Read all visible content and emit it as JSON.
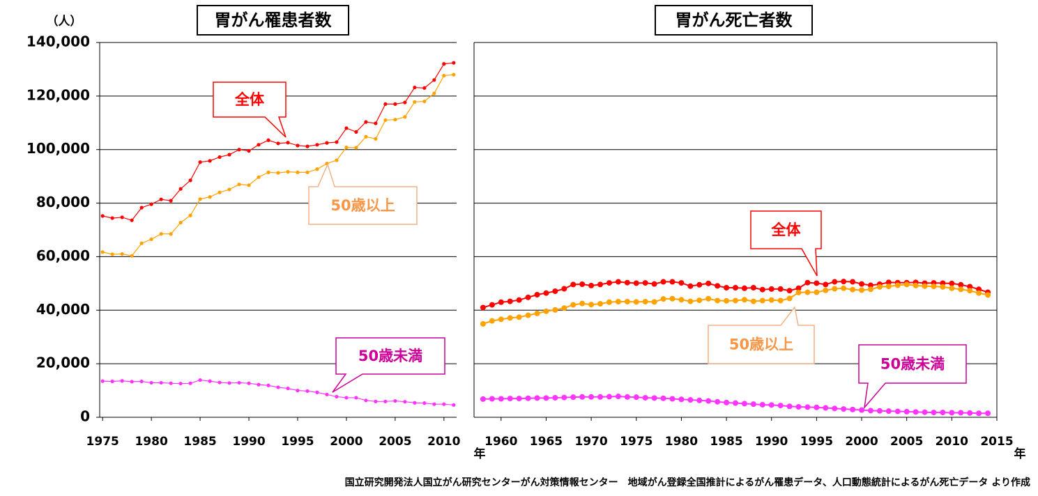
{
  "chart_data": [
    {
      "type": "line",
      "title": "胃がん罹患者数",
      "y_label": "（人）",
      "x_label": "年",
      "xlim": [
        1974.7,
        2011.3
      ],
      "xticks": [
        1975,
        1980,
        1985,
        1990,
        1995,
        2000,
        2005,
        2010
      ],
      "ylim": [
        0,
        140000
      ],
      "yticks": [
        0,
        {
          "value": 20000,
          "label": "20,000"
        },
        {
          "value": 40000,
          "label": "40,000"
        },
        {
          "value": 60000,
          "label": "60,000"
        },
        {
          "value": 80000,
          "label": "80,000"
        },
        {
          "value": 100000,
          "label": "100,000"
        },
        {
          "value": 120000,
          "label": "120,000"
        },
        {
          "value": 140000,
          "label": "140,000"
        }
      ],
      "grid": true,
      "x": [
        1975,
        1976,
        1977,
        1978,
        1979,
        1980,
        1981,
        1982,
        1983,
        1984,
        1985,
        1986,
        1987,
        1988,
        1989,
        1990,
        1991,
        1992,
        1993,
        1994,
        1995,
        1996,
        1997,
        1998,
        1999,
        2000,
        2001,
        2002,
        2003,
        2004,
        2005,
        2006,
        2007,
        2008,
        2009,
        2010,
        2011
      ],
      "series": [
        {
          "name": "全体",
          "color": "#ff0000",
          "values": [
            75200,
            74400,
            74700,
            73600,
            78300,
            79600,
            81400,
            80900,
            85300,
            88500,
            95300,
            95800,
            97200,
            98100,
            100000,
            99500,
            101800,
            103500,
            102300,
            102600,
            101500,
            101200,
            101800,
            102500,
            102800,
            108000,
            106600,
            110300,
            109800,
            117000,
            117000,
            117600,
            123200,
            123000,
            126000,
            132000,
            132400
          ]
        },
        {
          "name": "50歳以上",
          "color": "#ffa200",
          "values": [
            61700,
            60900,
            61000,
            60300,
            65000,
            66500,
            68500,
            68500,
            72700,
            75400,
            81500,
            82300,
            84000,
            85100,
            87000,
            86700,
            89700,
            91500,
            91300,
            91700,
            91500,
            91500,
            92700,
            94800,
            96000,
            100800,
            100700,
            104800,
            104000,
            111000,
            111200,
            112200,
            117800,
            118000,
            121000,
            127600,
            128000
          ]
        },
        {
          "name": "50歳未満",
          "color": "#ff33ff",
          "values": [
            13500,
            13400,
            13600,
            13300,
            13400,
            12900,
            12900,
            12700,
            12600,
            12700,
            13900,
            13500,
            13000,
            12800,
            12900,
            12700,
            12200,
            11900,
            11200,
            10800,
            10000,
            9800,
            9300,
            8500,
            7700,
            7300,
            7300,
            6300,
            5900,
            5900,
            6100,
            5800,
            5400,
            5300,
            4900,
            4900,
            4600
          ]
        }
      ]
    },
    {
      "type": "line",
      "title": "胃がん死亡者数",
      "x_label": "年",
      "sharey": true,
      "xlim": [
        1957,
        2015
      ],
      "xticks": [
        1960,
        1965,
        1970,
        1975,
        1980,
        1985,
        1990,
        1995,
        2000,
        2005,
        2010,
        2015
      ],
      "ylim": [
        0,
        140000
      ],
      "grid": true,
      "x": [
        1958,
        1959,
        1960,
        1961,
        1962,
        1963,
        1964,
        1965,
        1966,
        1967,
        1968,
        1969,
        1970,
        1971,
        1972,
        1973,
        1974,
        1975,
        1976,
        1977,
        1978,
        1979,
        1980,
        1981,
        1982,
        1983,
        1984,
        1985,
        1986,
        1987,
        1988,
        1989,
        1990,
        1991,
        1992,
        1993,
        1994,
        1995,
        1996,
        1997,
        1998,
        1999,
        2000,
        2001,
        2002,
        2003,
        2004,
        2005,
        2006,
        2007,
        2008,
        2009,
        2010,
        2011,
        2012,
        2013,
        2014
      ],
      "series": [
        {
          "name": "全体",
          "color": "#ff0000",
          "values": [
            41000,
            42000,
            43000,
            43300,
            43800,
            44800,
            45800,
            46400,
            47100,
            48000,
            49600,
            49700,
            49200,
            49600,
            50200,
            50600,
            50300,
            50100,
            50200,
            49800,
            50600,
            50600,
            50200,
            49000,
            49500,
            50000,
            49100,
            48400,
            48400,
            48200,
            48400,
            47700,
            47900,
            47900,
            47300,
            48200,
            50300,
            50100,
            49600,
            50600,
            50700,
            50600,
            49800,
            49300,
            49700,
            50400,
            50300,
            50300,
            50400,
            50100,
            50200,
            50100,
            50000,
            49500,
            48800,
            47800,
            46700
          ]
        },
        {
          "name": "50歳以上",
          "color": "#ffa200",
          "values": [
            34900,
            36000,
            36600,
            37100,
            37400,
            38100,
            38800,
            39600,
            40100,
            40800,
            42000,
            42500,
            42100,
            42400,
            43000,
            43200,
            43200,
            43100,
            43200,
            43100,
            44200,
            44300,
            43900,
            43300,
            43700,
            44300,
            43600,
            43500,
            43600,
            43900,
            43300,
            43600,
            43800,
            43600,
            44400,
            46600,
            46700,
            46700,
            47400,
            48000,
            48200,
            47700,
            47500,
            47800,
            48700,
            48900,
            49300,
            49600,
            49200,
            49000,
            48900,
            48700,
            48200,
            47800,
            47300,
            46400,
            45700
          ]
        },
        {
          "name": "50歳未満",
          "color": "#ff33ff",
          "values": [
            6800,
            6900,
            6900,
            7000,
            7000,
            7100,
            7200,
            7200,
            7300,
            7400,
            7500,
            7600,
            7600,
            7600,
            7700,
            7800,
            7600,
            7500,
            7300,
            7200,
            7100,
            6900,
            6700,
            6500,
            6300,
            6100,
            5800,
            5500,
            5300,
            5100,
            4900,
            4700,
            4600,
            4400,
            4100,
            3900,
            3800,
            3700,
            3500,
            3300,
            3100,
            2900,
            2700,
            2500,
            2400,
            2300,
            2200,
            2100,
            2000,
            1900,
            1800,
            1800,
            1700,
            1700,
            1600,
            1500,
            1500
          ]
        }
      ]
    }
  ],
  "source": "国立研究開発法人国立がん研究センターがん対策情報センター　地域がん登録全国推計によるがん罹患データ、人口動態統計によるがん死亡データ より作成"
}
